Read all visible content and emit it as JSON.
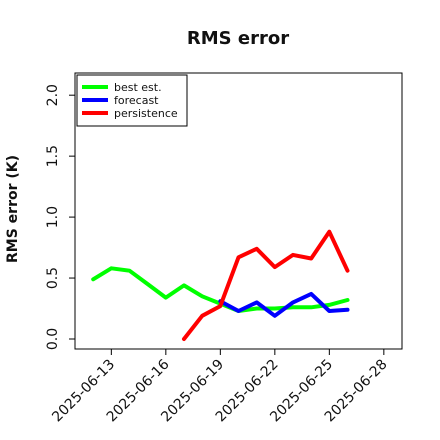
{
  "chart_data": {
    "type": "line",
    "title": "RMS error",
    "xlabel": "",
    "ylabel": "RMS error (K)",
    "x_type": "date",
    "xlim": [
      "2025-06-11",
      "2025-06-29"
    ],
    "ylim": [
      0,
      2.1
    ],
    "y_ticks": [
      0.0,
      0.5,
      1.0,
      1.5,
      2.0
    ],
    "y_tick_labels": [
      "0.0",
      "0.5",
      "1.0",
      "1.5",
      "2.0"
    ],
    "x_ticks": [
      "2025-06-13",
      "2025-06-16",
      "2025-06-19",
      "2025-06-22",
      "2025-06-25",
      "2025-06-28"
    ],
    "x_tick_labels": [
      "2025-06-13",
      "2025-06-16",
      "2025-06-19",
      "2025-06-22",
      "2025-06-25",
      "2025-06-28"
    ],
    "highlighted_x_tick": "2025-06-19",
    "highlight_color": "#1e7b1e",
    "grid": false,
    "legend_position": "top-left",
    "series": [
      {
        "name": "best est.",
        "color": "#00ff00",
        "points": [
          [
            "2025-06-12",
            0.49
          ],
          [
            "2025-06-13",
            0.58
          ],
          [
            "2025-06-14",
            0.56
          ],
          [
            "2025-06-15",
            0.45
          ],
          [
            "2025-06-16",
            0.34
          ],
          [
            "2025-06-17",
            0.44
          ],
          [
            "2025-06-18",
            0.35
          ],
          [
            "2025-06-19",
            0.29
          ],
          [
            "2025-06-20",
            0.23
          ],
          [
            "2025-06-21",
            0.25
          ],
          [
            "2025-06-22",
            0.25
          ],
          [
            "2025-06-23",
            0.26
          ],
          [
            "2025-06-24",
            0.26
          ],
          [
            "2025-06-25",
            0.28
          ],
          [
            "2025-06-26",
            0.32
          ]
        ]
      },
      {
        "name": "forecast",
        "color": "#0000ff",
        "points": [
          [
            "2025-06-19",
            0.31
          ],
          [
            "2025-06-20",
            0.23
          ],
          [
            "2025-06-21",
            0.3
          ],
          [
            "2025-06-22",
            0.19
          ],
          [
            "2025-06-23",
            0.3
          ],
          [
            "2025-06-24",
            0.37
          ],
          [
            "2025-06-25",
            0.23
          ],
          [
            "2025-06-26",
            0.24
          ]
        ]
      },
      {
        "name": "persistence",
        "color": "#ff0000",
        "points": [
          [
            "2025-06-17",
            0.0
          ],
          [
            "2025-06-18",
            0.19
          ],
          [
            "2025-06-19",
            0.27
          ],
          [
            "2025-06-20",
            0.67
          ],
          [
            "2025-06-21",
            0.74
          ],
          [
            "2025-06-22",
            0.59
          ],
          [
            "2025-06-23",
            0.69
          ],
          [
            "2025-06-24",
            0.66
          ],
          [
            "2025-06-25",
            0.88
          ],
          [
            "2025-06-26",
            0.56
          ]
        ]
      }
    ]
  }
}
